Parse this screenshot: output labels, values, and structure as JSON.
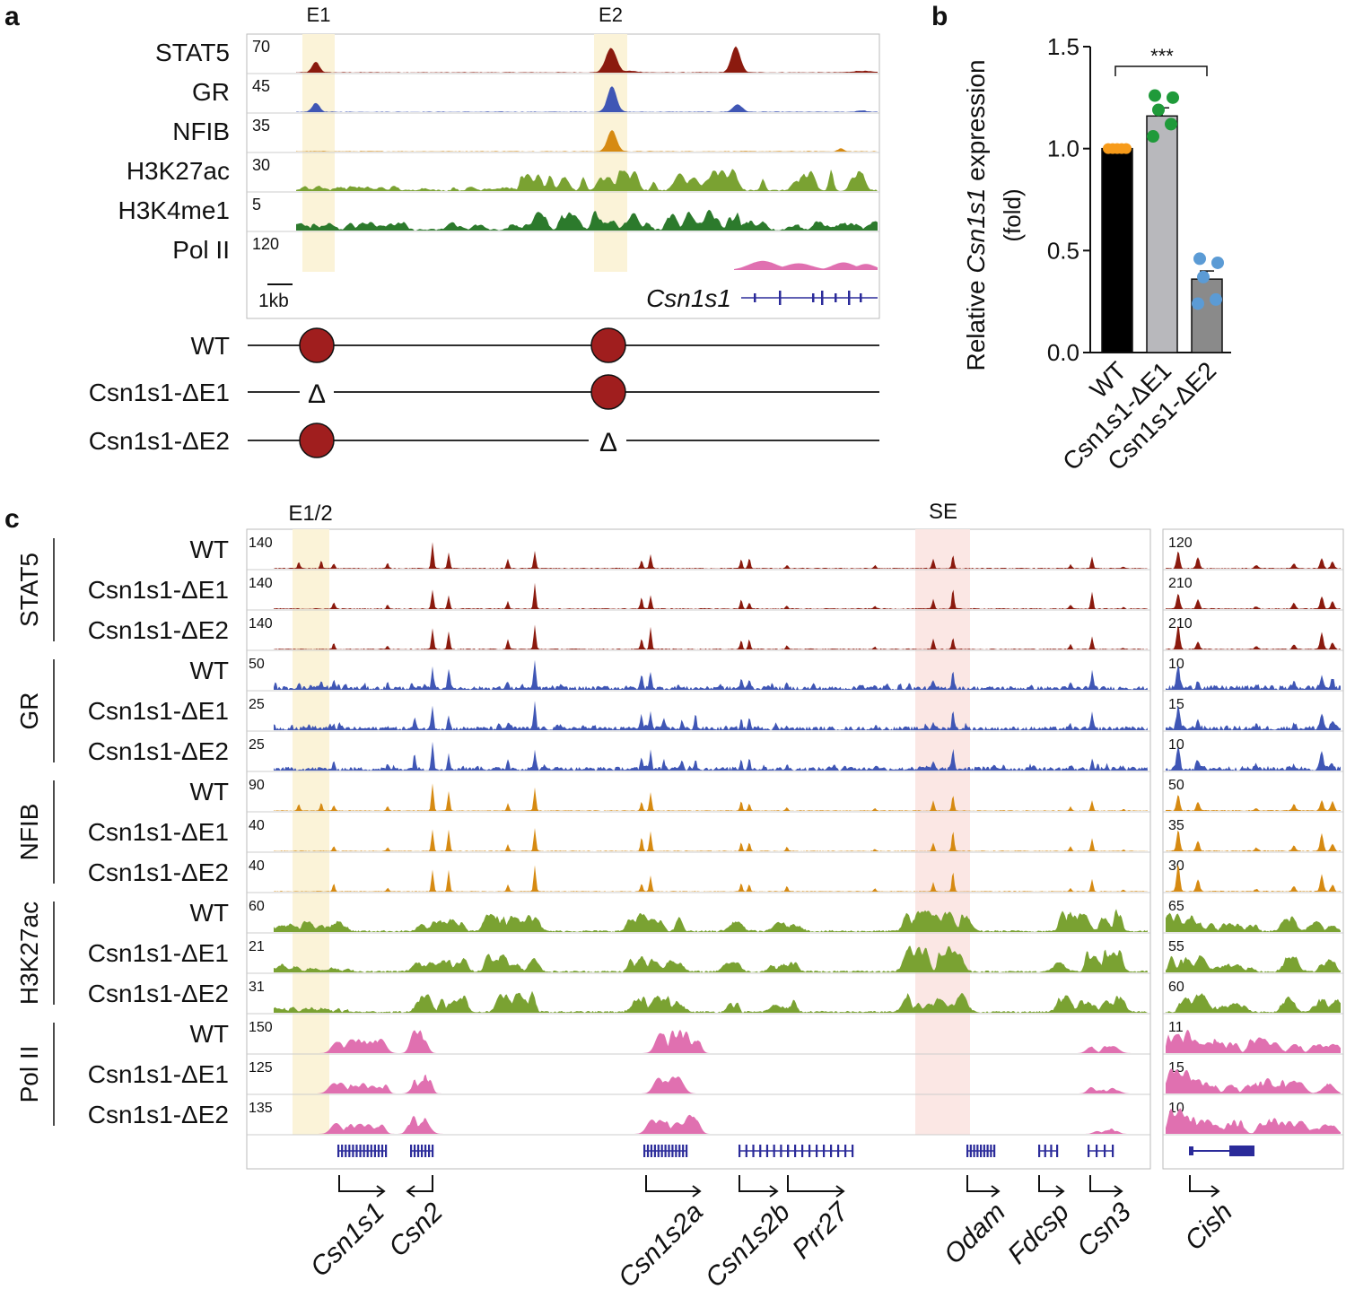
{
  "colors": {
    "stat5": "#8b1a0e",
    "gr": "#3f56b5",
    "nfib": "#d68a12",
    "h3k27ac": "#7aa232",
    "h3k4me1": "#2c7a2c",
    "pol2": "#e070b0",
    "gene": "#2b2b9a",
    "e_hl": "#fbf3d8",
    "se_hl": "#fbe7e4",
    "dot_red": "#a01e1e",
    "wt_dot": "#f79b1a",
    "e1_dot": "#1f9a3a",
    "e2_dot": "#5b9bd5"
  },
  "panel_a": {
    "label": "a",
    "highlights": [
      "E1",
      "E2"
    ],
    "tracks": [
      {
        "name": "STAT5",
        "scale": "70",
        "color": "stat5"
      },
      {
        "name": "GR",
        "scale": "45",
        "color": "gr"
      },
      {
        "name": "NFIB",
        "scale": "35",
        "color": "nfib"
      },
      {
        "name": "H3K27ac",
        "scale": "30",
        "color": "h3k27ac"
      },
      {
        "name": "H3K4me1",
        "scale": "5",
        "color": "h3k4me1"
      },
      {
        "name": "Pol II",
        "scale": "120",
        "color": "pol2"
      }
    ],
    "scalebar": "1kb",
    "gene": "Csn1s1",
    "constructs": [
      {
        "name": "WT",
        "e1": "dot",
        "e2": "dot"
      },
      {
        "name": "Csn1s1-ΔE1",
        "e1": "Δ",
        "e2": "dot"
      },
      {
        "name": "Csn1s1-ΔE2",
        "e1": "dot",
        "e2": "Δ"
      }
    ]
  },
  "panel_b_label": "b",
  "chart_data": {
    "type": "bar",
    "ylabel_prefix": "Relative ",
    "ylabel_gene": "Csn1s1",
    "ylabel_suffix": " expression",
    "ylabel_line2": "(fold)",
    "yticks": [
      "0.0",
      "0.5",
      "1.0",
      "1.5"
    ],
    "ylim": [
      0,
      1.5
    ],
    "categories": [
      "WT",
      "Csn1s1-ΔE1",
      "Csn1s1-ΔE2"
    ],
    "values": [
      1.0,
      1.16,
      0.36
    ],
    "errors": [
      0.0,
      0.04,
      0.04
    ],
    "points": [
      [
        1,
        1,
        1,
        1,
        1
      ],
      [
        1.26,
        1.25,
        1.19,
        1.12,
        1.06
      ],
      [
        0.46,
        0.44,
        0.37,
        0.26,
        0.24
      ]
    ],
    "significance": "***"
  },
  "panel_c": {
    "label": "c",
    "highlights": [
      "E1/2",
      "SE"
    ],
    "groups": [
      {
        "name": "STAT5",
        "color": "stat5",
        "rows": [
          {
            "s": "WT",
            "scale": "140",
            "scale2": "120"
          },
          {
            "s": "Csn1s1-ΔE1",
            "scale": "140",
            "scale2": "210"
          },
          {
            "s": "Csn1s1-ΔE2",
            "scale": "140",
            "scale2": "210"
          }
        ]
      },
      {
        "name": "GR",
        "color": "gr",
        "rows": [
          {
            "s": "WT",
            "scale": "50",
            "scale2": "10"
          },
          {
            "s": "Csn1s1-ΔE1",
            "scale": "25",
            "scale2": "15"
          },
          {
            "s": "Csn1s1-ΔE2",
            "scale": "25",
            "scale2": "10"
          }
        ]
      },
      {
        "name": "NFIB",
        "color": "nfib",
        "rows": [
          {
            "s": "WT",
            "scale": "90",
            "scale2": "50"
          },
          {
            "s": "Csn1s1-ΔE1",
            "scale": "40",
            "scale2": "35"
          },
          {
            "s": "Csn1s1-ΔE2",
            "scale": "40",
            "scale2": "30"
          }
        ]
      },
      {
        "name": "H3K27ac",
        "color": "h3k27ac",
        "rows": [
          {
            "s": "WT",
            "scale": "60",
            "scale2": "65"
          },
          {
            "s": "Csn1s1-ΔE1",
            "scale": "21",
            "scale2": "55"
          },
          {
            "s": "Csn1s1-ΔE2",
            "scale": "31",
            "scale2": "60"
          }
        ]
      },
      {
        "name": "Pol II",
        "color": "pol2",
        "rows": [
          {
            "s": "WT",
            "scale": "150",
            "scale2": "11"
          },
          {
            "s": "Csn1s1-ΔE1",
            "scale": "125",
            "scale2": "15"
          },
          {
            "s": "Csn1s1-ΔE2",
            "scale": "135",
            "scale2": "10"
          }
        ]
      }
    ],
    "genes": [
      "Csn1s1",
      "Csn2",
      "Csn1s2a",
      "Csn1s2b",
      "Prr27",
      "Odam",
      "Fdcsp",
      "Csn3",
      "Cish"
    ]
  }
}
